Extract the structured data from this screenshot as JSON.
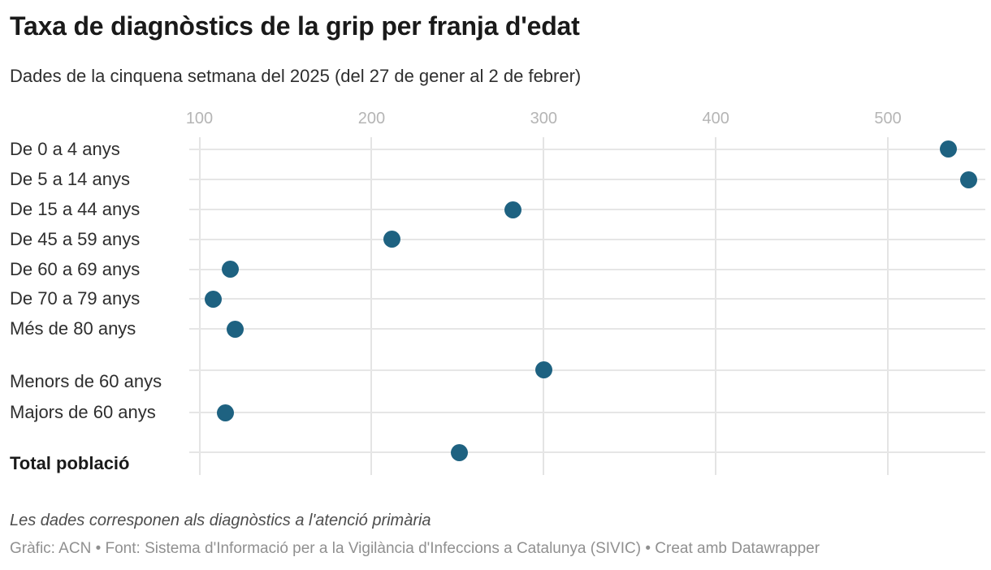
{
  "header": {
    "title": "Taxa de diagnòstics de la grip per franja d'edat",
    "subtitle": "Dades de la cinquena setmana del 2025 (del 27 de gener al 2 de febrer)"
  },
  "chart_data": {
    "type": "scatter",
    "variant": "horizontal-dot-plot",
    "x_ticks": [
      100,
      200,
      300,
      400,
      500
    ],
    "xlim": [
      95,
      560
    ],
    "grid": true,
    "dot_color": "#1e6281",
    "rows": [
      {
        "label": "De 0 a 4 anys",
        "value": 535,
        "bold": false
      },
      {
        "label": "De 5 a 14 anys",
        "value": 547,
        "bold": false
      },
      {
        "label": "De 15 a 44 anys",
        "value": 282,
        "bold": false
      },
      {
        "label": "De 45 a 59 anys",
        "value": 212,
        "bold": false
      },
      {
        "label": "De 60 a 69 anys",
        "value": 118,
        "bold": false
      },
      {
        "label": "De 70 a 79 anys",
        "value": 108,
        "bold": false
      },
      {
        "label": "Més de 80 anys",
        "value": 121,
        "bold": false
      },
      {
        "label": "Menors de 60 anys",
        "value": 300,
        "bold": false
      },
      {
        "label": "Majors de 60 anys",
        "value": 115,
        "bold": false
      },
      {
        "label": "Total població",
        "value": 251,
        "bold": true
      }
    ]
  },
  "footer": {
    "note": "Les dades corresponen als diagnòstics a l'atenció primària",
    "byline": "Gràfic: ACN • Font: Sistema d'Informació per a la Vigilància d'Infeccions a Catalunya (SIVIC) • Creat amb Datawrapper"
  }
}
